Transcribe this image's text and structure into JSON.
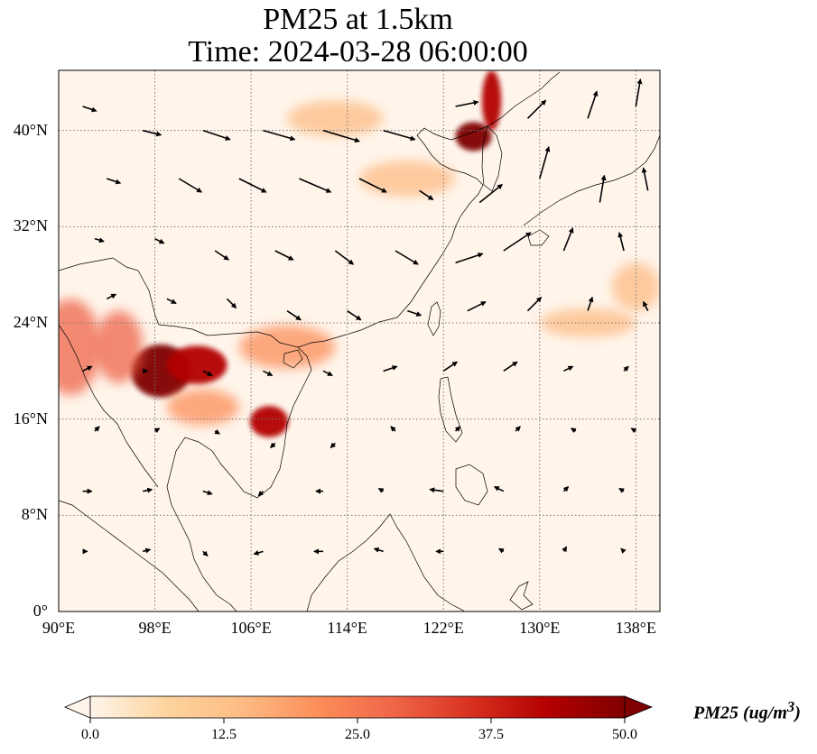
{
  "title": {
    "line1": "PM25 at 1.5km",
    "line2": "Time: 2024-03-28 06:00:00"
  },
  "map": {
    "variable": "PM25",
    "level": "1.5km",
    "lon_range": [
      90,
      140
    ],
    "lat_range": [
      0,
      45
    ],
    "gridlines": "dotted",
    "lat_ticks": [
      {
        "value": 0,
        "label": "0°"
      },
      {
        "value": 8,
        "label": "8°N"
      },
      {
        "value": 16,
        "label": "16°N"
      },
      {
        "value": 24,
        "label": "24°N"
      },
      {
        "value": 32,
        "label": "32°N"
      },
      {
        "value": 40,
        "label": "40°N"
      }
    ],
    "lon_ticks": [
      {
        "value": 90,
        "label": "90°E"
      },
      {
        "value": 98,
        "label": "98°E"
      },
      {
        "value": 106,
        "label": "106°E"
      },
      {
        "value": 114,
        "label": "114°E"
      },
      {
        "value": 122,
        "label": "122°E"
      },
      {
        "value": 130,
        "label": "130°E"
      },
      {
        "value": 138,
        "label": "138°E"
      }
    ],
    "hotspots": [
      {
        "lon": 98.5,
        "lat": 20,
        "rx": 2.5,
        "ry": 2.2,
        "level": 50
      },
      {
        "lon": 101.5,
        "lat": 20.5,
        "rx": 2.5,
        "ry": 1.6,
        "level": 40
      },
      {
        "lon": 107.5,
        "lat": 15.8,
        "rx": 1.6,
        "ry": 1.3,
        "level": 42
      },
      {
        "lon": 124.5,
        "lat": 39.5,
        "rx": 1.5,
        "ry": 1.2,
        "level": 50
      },
      {
        "lon": 126,
        "lat": 42.5,
        "rx": 0.8,
        "ry": 2.5,
        "level": 45
      },
      {
        "lon": 91,
        "lat": 22,
        "rx": 2.5,
        "ry": 4,
        "level": 28
      },
      {
        "lon": 95,
        "lat": 22,
        "rx": 2,
        "ry": 3,
        "level": 25
      },
      {
        "lon": 109,
        "lat": 22,
        "rx": 4,
        "ry": 1.8,
        "level": 20
      },
      {
        "lon": 102,
        "lat": 17,
        "rx": 3,
        "ry": 1.5,
        "level": 18
      },
      {
        "lon": 119,
        "lat": 36,
        "rx": 4,
        "ry": 1.5,
        "level": 14
      },
      {
        "lon": 113,
        "lat": 41,
        "rx": 4,
        "ry": 1.5,
        "level": 13
      },
      {
        "lon": 134,
        "lat": 24,
        "rx": 4,
        "ry": 1.2,
        "level": 14
      },
      {
        "lon": 138,
        "lat": 27,
        "rx": 2,
        "ry": 2,
        "level": 14
      }
    ],
    "wind_vectors": [
      {
        "lon": 92,
        "lat": 42,
        "u": 1.5,
        "v": -0.5
      },
      {
        "lon": 97,
        "lat": 40,
        "u": 2,
        "v": -0.5
      },
      {
        "lon": 102,
        "lat": 40,
        "u": 3,
        "v": -1
      },
      {
        "lon": 107,
        "lat": 40,
        "u": 3.5,
        "v": -1
      },
      {
        "lon": 112,
        "lat": 40,
        "u": 4,
        "v": -1.2
      },
      {
        "lon": 117,
        "lat": 40,
        "u": 3.5,
        "v": -1
      },
      {
        "lon": 123,
        "lat": 42,
        "u": 2.5,
        "v": 0.5
      },
      {
        "lon": 129,
        "lat": 41,
        "u": 2,
        "v": 2
      },
      {
        "lon": 134,
        "lat": 41,
        "u": 1,
        "v": 3
      },
      {
        "lon": 138,
        "lat": 42,
        "u": 0.5,
        "v": 3
      },
      {
        "lon": 94,
        "lat": 36,
        "u": 1.5,
        "v": -0.5
      },
      {
        "lon": 100,
        "lat": 36,
        "u": 2.5,
        "v": -1.5
      },
      {
        "lon": 105,
        "lat": 36,
        "u": 3,
        "v": -1.5
      },
      {
        "lon": 110,
        "lat": 36,
        "u": 3.5,
        "v": -1.5
      },
      {
        "lon": 115,
        "lat": 36,
        "u": 3,
        "v": -1.5
      },
      {
        "lon": 120,
        "lat": 35,
        "u": 1.5,
        "v": -1
      },
      {
        "lon": 125,
        "lat": 34,
        "u": 2.5,
        "v": 2
      },
      {
        "lon": 130,
        "lat": 36,
        "u": 1,
        "v": 3.5
      },
      {
        "lon": 135,
        "lat": 34,
        "u": 0.5,
        "v": 3
      },
      {
        "lon": 139,
        "lat": 35,
        "u": -0.5,
        "v": 2.5
      },
      {
        "lon": 93,
        "lat": 31,
        "u": 1,
        "v": -0.3
      },
      {
        "lon": 98,
        "lat": 31,
        "u": 1,
        "v": -0.5
      },
      {
        "lon": 103,
        "lat": 30,
        "u": 1.5,
        "v": -1
      },
      {
        "lon": 108,
        "lat": 30,
        "u": 2,
        "v": -1
      },
      {
        "lon": 113,
        "lat": 30,
        "u": 2,
        "v": -1.5
      },
      {
        "lon": 118,
        "lat": 30,
        "u": 2.5,
        "v": -1.5
      },
      {
        "lon": 123,
        "lat": 29,
        "u": 3,
        "v": 1
      },
      {
        "lon": 127,
        "lat": 30,
        "u": 3,
        "v": 2
      },
      {
        "lon": 132,
        "lat": 30,
        "u": 1,
        "v": 2.5
      },
      {
        "lon": 137,
        "lat": 30,
        "u": -0.5,
        "v": 2
      },
      {
        "lon": 94,
        "lat": 26,
        "u": 1,
        "v": 0.5
      },
      {
        "lon": 99,
        "lat": 26,
        "u": 1,
        "v": -0.5
      },
      {
        "lon": 104,
        "lat": 26,
        "u": 1,
        "v": -1
      },
      {
        "lon": 109,
        "lat": 25,
        "u": 1.5,
        "v": -1
      },
      {
        "lon": 114,
        "lat": 25,
        "u": 1.5,
        "v": -1
      },
      {
        "lon": 119,
        "lat": 25,
        "u": 1.5,
        "v": -0.5
      },
      {
        "lon": 124,
        "lat": 25,
        "u": 2,
        "v": 1
      },
      {
        "lon": 129,
        "lat": 25,
        "u": 1.5,
        "v": 1.5
      },
      {
        "lon": 134,
        "lat": 25,
        "u": 0.5,
        "v": 1.5
      },
      {
        "lon": 139,
        "lat": 25,
        "u": -0.5,
        "v": 1
      },
      {
        "lon": 92,
        "lat": 20,
        "u": 1,
        "v": 0.5
      },
      {
        "lon": 97,
        "lat": 20,
        "u": 0.5,
        "v": 0
      },
      {
        "lon": 102,
        "lat": 20,
        "u": 1,
        "v": -0.5
      },
      {
        "lon": 107,
        "lat": 20,
        "u": 1,
        "v": -0.5
      },
      {
        "lon": 112,
        "lat": 20,
        "u": 1,
        "v": -0.5
      },
      {
        "lon": 117,
        "lat": 20,
        "u": 1.5,
        "v": 0.5
      },
      {
        "lon": 122,
        "lat": 20,
        "u": 1.5,
        "v": 1
      },
      {
        "lon": 127,
        "lat": 20,
        "u": 1.5,
        "v": 1
      },
      {
        "lon": 132,
        "lat": 20,
        "u": 1,
        "v": 0.5
      },
      {
        "lon": 137,
        "lat": 20,
        "u": 0.5,
        "v": 0.5
      },
      {
        "lon": 93,
        "lat": 15,
        "u": 0.5,
        "v": 0.5
      },
      {
        "lon": 98,
        "lat": 15,
        "u": 0.5,
        "v": 0.3
      },
      {
        "lon": 103,
        "lat": 15,
        "u": 0.5,
        "v": -0.3
      },
      {
        "lon": 108,
        "lat": 14,
        "u": -0.5,
        "v": -0.5
      },
      {
        "lon": 113,
        "lat": 14,
        "u": -0.5,
        "v": -0.5
      },
      {
        "lon": 118,
        "lat": 15,
        "u": -0.5,
        "v": 0.5
      },
      {
        "lon": 123,
        "lat": 15,
        "u": 0.5,
        "v": 0.5
      },
      {
        "lon": 128,
        "lat": 15,
        "u": 0.5,
        "v": 0.5
      },
      {
        "lon": 133,
        "lat": 15,
        "u": -0.5,
        "v": 0.3
      },
      {
        "lon": 138,
        "lat": 15,
        "u": -0.5,
        "v": 0.3
      },
      {
        "lon": 92,
        "lat": 10,
        "u": 1,
        "v": 0
      },
      {
        "lon": 97,
        "lat": 10,
        "u": 1,
        "v": 0.2
      },
      {
        "lon": 102,
        "lat": 10,
        "u": 1,
        "v": -0.3
      },
      {
        "lon": 107,
        "lat": 10,
        "u": -0.5,
        "v": -0.5
      },
      {
        "lon": 112,
        "lat": 10,
        "u": -0.8,
        "v": 0
      },
      {
        "lon": 117,
        "lat": 10,
        "u": -0.5,
        "v": 0.3
      },
      {
        "lon": 122,
        "lat": 10,
        "u": -1.5,
        "v": 0.2
      },
      {
        "lon": 127,
        "lat": 10,
        "u": -1,
        "v": 0.5
      },
      {
        "lon": 132,
        "lat": 10,
        "u": 0.5,
        "v": 0.5
      },
      {
        "lon": 137,
        "lat": 10,
        "u": -0.5,
        "v": 0.3
      },
      {
        "lon": 92,
        "lat": 5,
        "u": 0.5,
        "v": 0
      },
      {
        "lon": 97,
        "lat": 5,
        "u": 0.8,
        "v": 0.2
      },
      {
        "lon": 102,
        "lat": 5,
        "u": 0.5,
        "v": -0.5
      },
      {
        "lon": 107,
        "lat": 5,
        "u": -1,
        "v": -0.3
      },
      {
        "lon": 112,
        "lat": 5,
        "u": -1,
        "v": 0
      },
      {
        "lon": 117,
        "lat": 5,
        "u": -1,
        "v": 0.3
      },
      {
        "lon": 122,
        "lat": 5,
        "u": -0.8,
        "v": 0
      },
      {
        "lon": 127,
        "lat": 5,
        "u": -0.5,
        "v": 0.3
      },
      {
        "lon": 132,
        "lat": 5,
        "u": 0.3,
        "v": 0.5
      },
      {
        "lon": 137,
        "lat": 5,
        "u": -0.3,
        "v": 0.3
      }
    ]
  },
  "colorbar": {
    "ticks": [
      {
        "value": 0,
        "label": "0.0"
      },
      {
        "value": 12.5,
        "label": "12.5"
      },
      {
        "value": 25,
        "label": "25.0"
      },
      {
        "value": 37.5,
        "label": "37.5"
      },
      {
        "value": 50,
        "label": "50.0"
      }
    ],
    "min": 0,
    "max": 50,
    "colormap": [
      "#fff5eb",
      "#fdd49e",
      "#fdbb84",
      "#fc8d59",
      "#ef6548",
      "#d7301f",
      "#b30000",
      "#7f0000"
    ],
    "label": "PM25 (ug/m",
    "label_sup": "3",
    "label_close": ")"
  }
}
